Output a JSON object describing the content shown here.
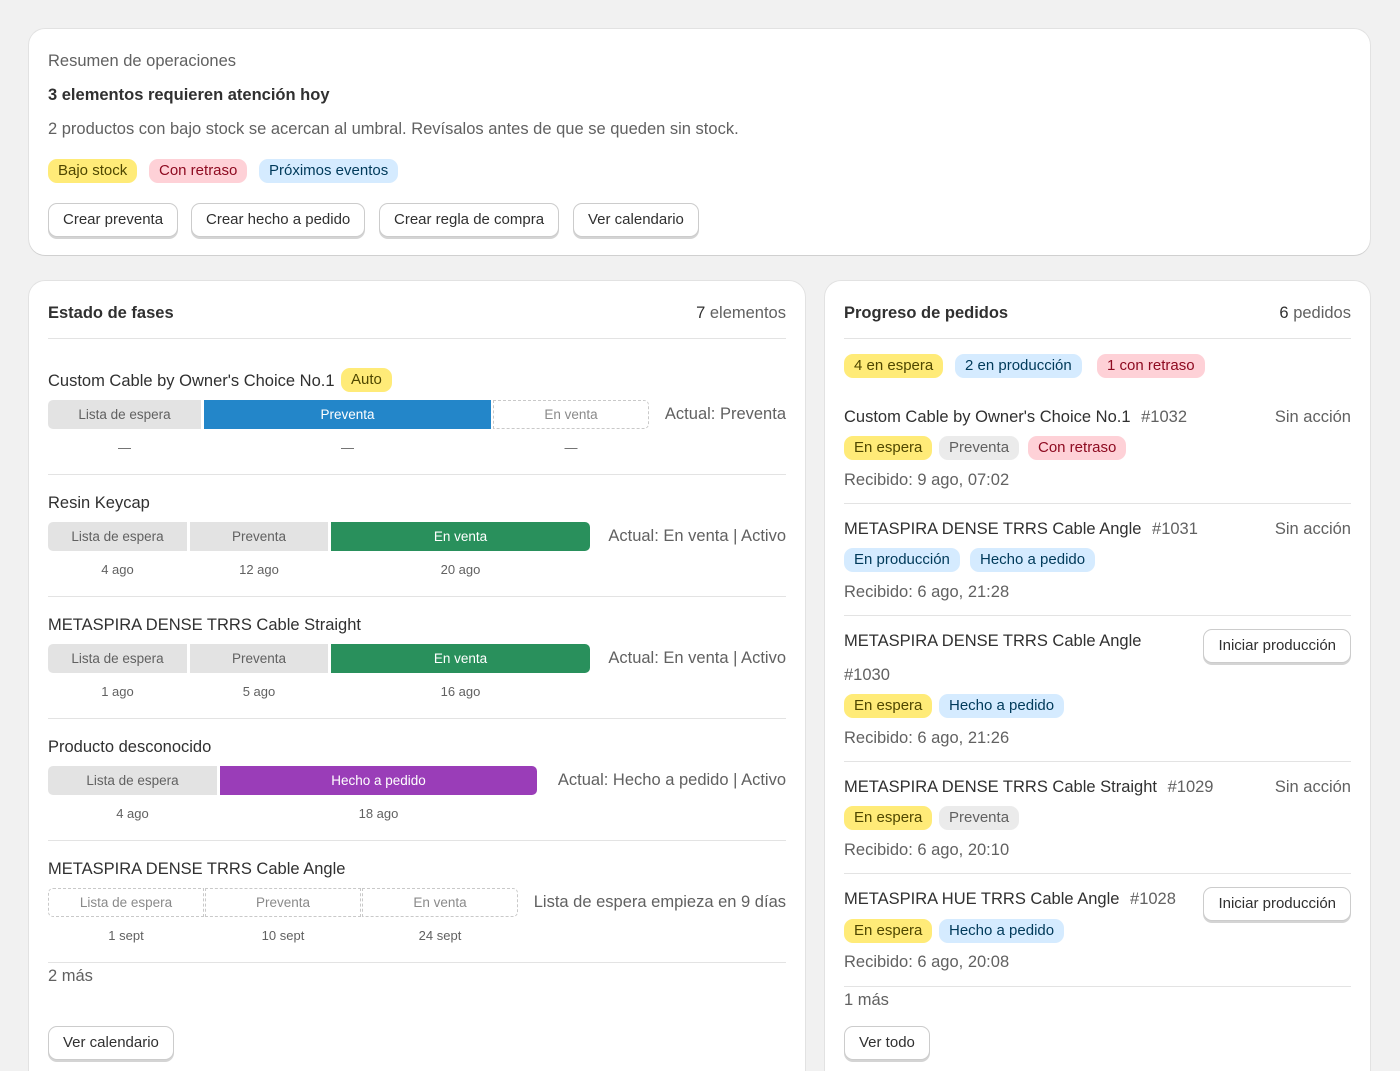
{
  "summary": {
    "heading": "Resumen de operaciones",
    "title": "3 elementos requieren atención hoy",
    "description": "2 productos con bajo stock se acercan al umbral. Revísalos antes de que se queden sin stock.",
    "badges": [
      "Bajo stock",
      "Con retraso",
      "Próximos eventos"
    ],
    "actions": [
      "Crear preventa",
      "Crear hecho a pedido",
      "Crear regla de compra",
      "Ver calendario"
    ]
  },
  "phases": {
    "title": "Estado de fases",
    "count_num": "7",
    "count_label": "elementos",
    "items": [
      {
        "name": "Custom Cable by Owner's Choice No.1",
        "badge": "Auto",
        "segments": [
          "Lista de espera",
          "Preventa",
          "En venta"
        ],
        "dates": [
          "—",
          "—",
          "—"
        ],
        "status": "Actual: Preventa"
      },
      {
        "name": "Resin Keycap",
        "segments": [
          "Lista de espera",
          "Preventa",
          "En venta"
        ],
        "dates": [
          "4 ago",
          "12 ago",
          "20 ago"
        ],
        "status": "Actual: En venta | Activo"
      },
      {
        "name": "METASPIRA DENSE TRRS Cable Straight",
        "segments": [
          "Lista de espera",
          "Preventa",
          "En venta"
        ],
        "dates": [
          "1 ago",
          "5 ago",
          "16 ago"
        ],
        "status": "Actual: En venta | Activo"
      },
      {
        "name": "Producto desconocido",
        "segments": [
          "Lista de espera",
          "Hecho a pedido"
        ],
        "dates": [
          "4 ago",
          "18 ago"
        ],
        "status": "Actual: Hecho a pedido | Activo"
      },
      {
        "name": "METASPIRA DENSE TRRS Cable Angle",
        "segments": [
          "Lista de espera",
          "Preventa",
          "En venta"
        ],
        "dates": [
          "1 sept",
          "10 sept",
          "24 sept"
        ],
        "status": "Lista de espera empieza en 9 días"
      }
    ],
    "more": "2 más",
    "action": "Ver calendario"
  },
  "orders": {
    "title": "Progreso de pedidos",
    "count_num": "6",
    "count_label": "pedidos",
    "summary_badges": [
      "4 en espera",
      "2 en producción",
      "1 con retraso"
    ],
    "items": [
      {
        "name": "Custom Cable by Owner's Choice No.1",
        "number": "#1032",
        "action": "Sin acción",
        "badges": [
          "En espera",
          "Preventa",
          "Con retraso"
        ],
        "received": "Recibido: 9 ago, 07:02"
      },
      {
        "name": "METASPIRA DENSE TRRS Cable Angle",
        "number": "#1031",
        "action": "Sin acción",
        "badges": [
          "En producción",
          "Hecho a pedido"
        ],
        "received": "Recibido: 6 ago, 21:28"
      },
      {
        "name": "METASPIRA DENSE TRRS Cable Angle",
        "number": "#1030",
        "action": "Iniciar producción",
        "badges": [
          "En espera",
          "Hecho a pedido"
        ],
        "received": "Recibido: 6 ago, 21:26"
      },
      {
        "name": "METASPIRA DENSE TRRS Cable Straight",
        "number": "#1029",
        "action": "Sin acción",
        "badges": [
          "En espera",
          "Preventa"
        ],
        "received": "Recibido: 6 ago, 20:10"
      },
      {
        "name": "METASPIRA HUE TRRS Cable Angle",
        "number": "#1028",
        "action": "Iniciar producción",
        "badges": [
          "En espera",
          "Hecho a pedido"
        ],
        "received": "Recibido: 6 ago, 20:08"
      }
    ],
    "more": "1 más",
    "action": "Ver todo"
  },
  "colors": {
    "preventa": "#2386c9",
    "en_venta": "#29905c",
    "hecho_a_pedido": "#9a3db8",
    "badge_yellow": "#ffeb78",
    "badge_red": "#fed1d7",
    "badge_blue": "#d5ebff",
    "badge_gray": "#ebebeb"
  }
}
